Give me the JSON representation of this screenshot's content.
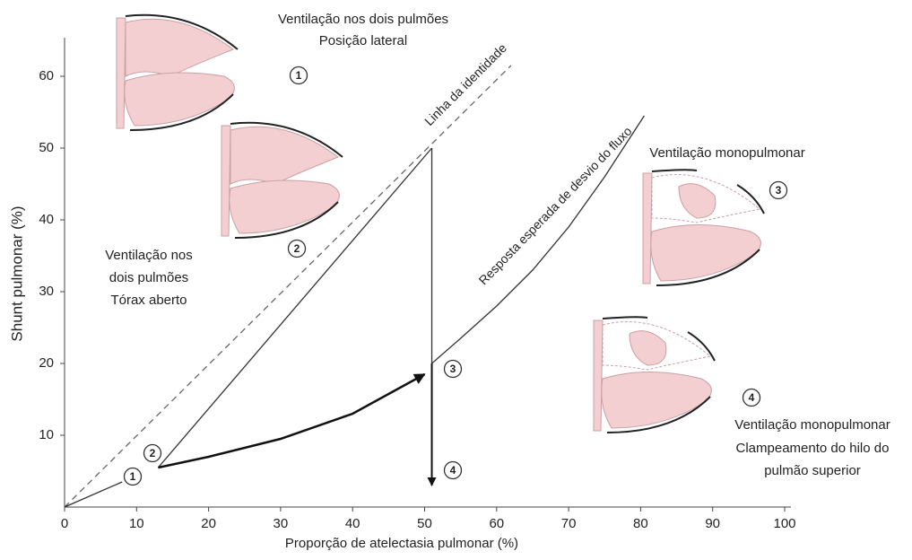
{
  "chart_data": {
    "type": "line",
    "xlabel": "Proporção de atelectasia pulmonar (%)",
    "ylabel": "Shunt pulmonar (%)",
    "xlim": [
      0,
      100
    ],
    "ylim": [
      0,
      65
    ],
    "xticks": [
      0,
      10,
      20,
      30,
      40,
      50,
      60,
      70,
      80,
      90,
      100
    ],
    "yticks": [
      10,
      20,
      30,
      40,
      50,
      60
    ],
    "grid": false,
    "series": [
      {
        "x": [
          0,
          62
        ],
        "values": [
          0,
          61.5
        ],
        "color": "#666666",
        "dashed": true
      },
      {
        "x": [
          0,
          8
        ],
        "values": [
          0,
          3.5
        ],
        "color": "#333333"
      },
      {
        "x": [
          13,
          51
        ],
        "values": [
          5.5,
          50
        ],
        "color": "#333333"
      },
      {
        "x": [
          51,
          51
        ],
        "values": [
          50,
          20
        ],
        "color": "#333333"
      },
      {
        "x": [
          51,
          55,
          60,
          65,
          70,
          75,
          80.5
        ],
        "values": [
          20,
          23.5,
          28,
          33,
          39,
          46,
          54.5
        ],
        "color": "#333333"
      },
      {
        "x": [
          13,
          20,
          30,
          40,
          50
        ],
        "values": [
          5.5,
          7,
          9.5,
          13,
          18.5
        ],
        "color": "#111111",
        "arrow": true,
        "width": 2.5
      },
      {
        "x": [
          51,
          51
        ],
        "values": [
          20,
          3
        ],
        "color": "#111111",
        "arrow": true,
        "width": 2
      }
    ],
    "annotations": [
      "Ventilação nos dois pulmões",
      "Posição lateral",
      "1",
      "2",
      "Ventilação nos",
      "dois pulmões",
      "Tórax aberto",
      "Ventilação monopulmonar",
      "3",
      "4",
      "Ventilação monopulmonar",
      "Clampeamento do hilo do",
      "pulmão superior",
      "1",
      "2",
      "3",
      "4",
      "Linha da identidade",
      "Resposta esperada de desvio do fluxo"
    ]
  }
}
